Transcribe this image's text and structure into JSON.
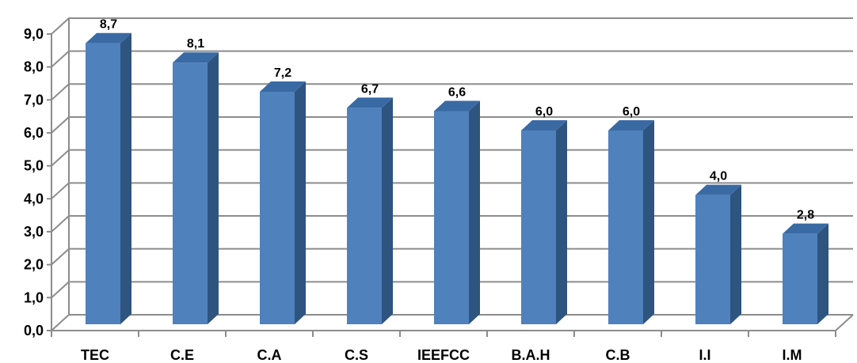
{
  "chart_data": {
    "type": "bar",
    "title": "",
    "xlabel": "",
    "ylabel": "",
    "categories": [
      "TEC",
      "C.E",
      "C.A",
      "C.S",
      "IEEFCC",
      "B.A.H",
      "C.B",
      "I.I",
      "I.M"
    ],
    "values": [
      8.7,
      8.1,
      7.2,
      6.7,
      6.6,
      6.0,
      6.0,
      4.0,
      2.8
    ],
    "data_labels": [
      "8,7",
      "8,1",
      "7,2",
      "6,7",
      "6,6",
      "6,0",
      "6,0",
      "4,0",
      "2,8"
    ],
    "ylim": [
      0,
      9
    ],
    "yticks": [
      0,
      1,
      2,
      3,
      4,
      5,
      6,
      7,
      8,
      9
    ],
    "ytick_labels": [
      "0,0",
      "1,0",
      "2,0",
      "3,0",
      "4,0",
      "5,0",
      "6,0",
      "7,0",
      "8,0",
      "9,0"
    ],
    "grid": true,
    "legend": "none",
    "style": "3d",
    "colors": {
      "bar_front": "#4f81bd",
      "bar_side": "#2e5480",
      "bar_top": "#3a6aa3",
      "grid": "#8c8c8c"
    }
  }
}
